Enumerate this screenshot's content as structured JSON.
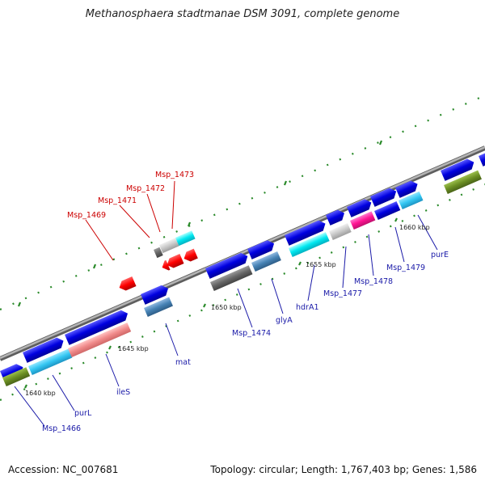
{
  "title": "Methanosphaera stadtmanae DSM 3091, complete genome",
  "footer": {
    "accession": "Accession: NC_007681",
    "summary": "Topology: circular; Length: 1,767,403 bp; Genes: 1,586"
  },
  "colors": {
    "backbone": "#8c8c8c",
    "tick": "#2a8a2a",
    "label_blue": "#1a1aa8",
    "label_red": "#cc0000"
  },
  "scale_labels": [
    {
      "text": "1640 kbp"
    },
    {
      "text": "1645 kbp"
    },
    {
      "text": "1650 kbp"
    },
    {
      "text": "1655 kbp"
    },
    {
      "text": "1660 kbp"
    }
  ],
  "gene_labels": [
    {
      "text": "Msp_1466",
      "color": "blue"
    },
    {
      "text": "purL",
      "color": "blue"
    },
    {
      "text": "ileS",
      "color": "blue"
    },
    {
      "text": "mat",
      "color": "blue"
    },
    {
      "text": "Msp_1474",
      "color": "blue"
    },
    {
      "text": "glyA",
      "color": "blue"
    },
    {
      "text": "hdrA1",
      "color": "blue"
    },
    {
      "text": "Msp_1477",
      "color": "blue"
    },
    {
      "text": "Msp_1478",
      "color": "blue"
    },
    {
      "text": "Msp_1479",
      "color": "blue"
    },
    {
      "text": "purE",
      "color": "blue"
    },
    {
      "text": "Msp_1469",
      "color": "red"
    },
    {
      "text": "Msp_1471",
      "color": "red"
    },
    {
      "text": "Msp_1472",
      "color": "red"
    },
    {
      "text": "Msp_1473",
      "color": "red"
    }
  ]
}
